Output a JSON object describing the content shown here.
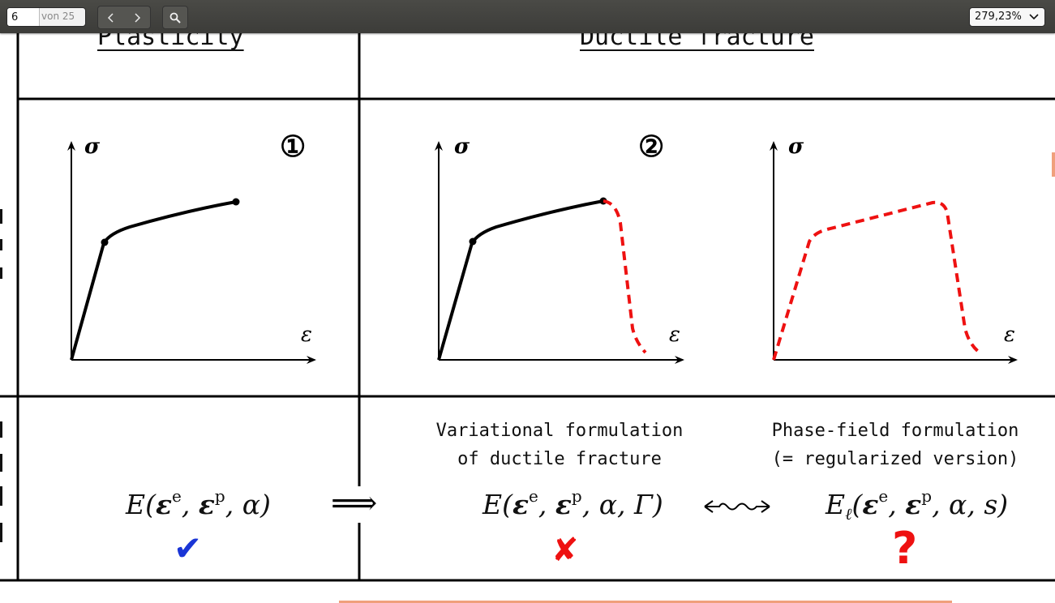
{
  "toolbar": {
    "page_number": "6",
    "page_total": "von 25",
    "prev_icon": "chevron-left-icon",
    "next_icon": "chevron-right-icon",
    "search_icon": "search-icon",
    "zoom_value": "279,23%",
    "zoom_dropdown_icon": "chevron-down-icon"
  },
  "document": {
    "headers": {
      "plasticity": "Plasticity",
      "ductile_fracture": "Ductile fracture"
    },
    "plots": {
      "plot1": {
        "y_axis": "σ",
        "x_axis": "ε",
        "marker": "①"
      },
      "plot2": {
        "y_axis": "σ",
        "x_axis": "ε",
        "marker": "②"
      },
      "plot3": {
        "y_axis": "σ",
        "x_axis": "ε"
      }
    },
    "captions": {
      "variational_line1": "Variational formulation",
      "variational_line2": "of ductile fracture",
      "phasefield_line1": "Phase-field formulation",
      "phasefield_line2": "(= regularized version)"
    },
    "formulas": {
      "plasticity": {
        "prefix": "E(",
        "eps": "ε",
        "e": "e",
        "p": "p",
        "rest": ", α)"
      },
      "variational": {
        "prefix": "E(",
        "eps": "ε",
        "e": "e",
        "p": "p",
        "rest": ", α, Γ)"
      },
      "phasefield": {
        "prefix": "E",
        "sub": "ℓ",
        "open": "(",
        "eps": "ε",
        "e": "e",
        "p": "p",
        "rest": ", α, s)"
      },
      "implies": "⟹",
      "wavy": "↭"
    },
    "status_marks": {
      "plasticity": {
        "glyph": "✔",
        "color": "#1a35d6"
      },
      "variational": {
        "glyph": "✘",
        "color": "#ee1111"
      },
      "phasefield": {
        "glyph": "?",
        "color": "#ee1111"
      }
    },
    "colors": {
      "curve": "#000000",
      "fracture": "#ee1111"
    }
  }
}
